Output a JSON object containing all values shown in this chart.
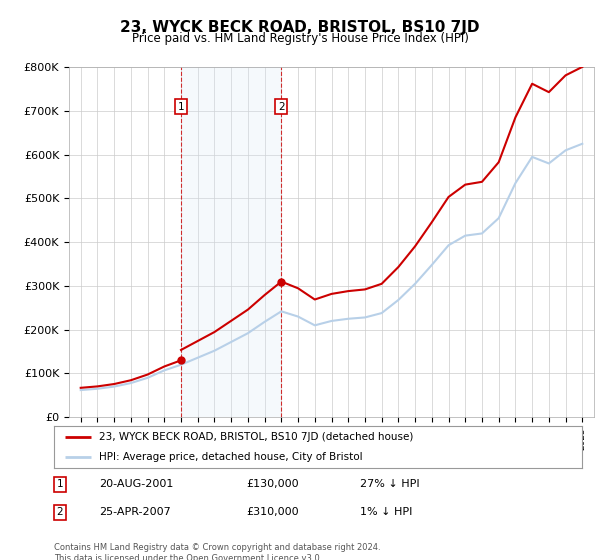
{
  "title": "23, WYCK BECK ROAD, BRISTOL, BS10 7JD",
  "subtitle": "Price paid vs. HM Land Registry's House Price Index (HPI)",
  "years": [
    1995,
    1996,
    1997,
    1998,
    1999,
    2000,
    2001,
    2002,
    2003,
    2004,
    2005,
    2006,
    2007,
    2008,
    2009,
    2010,
    2011,
    2012,
    2013,
    2014,
    2015,
    2016,
    2017,
    2018,
    2019,
    2020,
    2021,
    2022,
    2023,
    2024,
    2025
  ],
  "hpi_values": [
    62000,
    65000,
    70000,
    78000,
    90000,
    107000,
    120000,
    136000,
    152000,
    172000,
    192000,
    218000,
    242000,
    230000,
    210000,
    220000,
    225000,
    228000,
    238000,
    268000,
    305000,
    348000,
    393000,
    415000,
    420000,
    455000,
    535000,
    595000,
    580000,
    610000,
    625000
  ],
  "sale1_year": 2001,
  "sale1_value": 130000,
  "sale2_year": 2007,
  "sale2_value": 310000,
  "annotation1_date": "20-AUG-2001",
  "annotation1_price": "£130,000",
  "annotation1_hpi": "27% ↓ HPI",
  "annotation2_date": "25-APR-2007",
  "annotation2_price": "£310,000",
  "annotation2_hpi": "1% ↓ HPI",
  "legend_label1": "23, WYCK BECK ROAD, BRISTOL, BS10 7JD (detached house)",
  "legend_label2": "HPI: Average price, detached house, City of Bristol",
  "footer": "Contains HM Land Registry data © Crown copyright and database right 2024.\nThis data is licensed under the Open Government Licence v3.0.",
  "hpi_color": "#b8d0e8",
  "price_paid_color": "#cc0000",
  "shaded_color": "#daeaf7",
  "ylim": [
    0,
    800000
  ],
  "yticks": [
    0,
    100000,
    200000,
    300000,
    400000,
    500000,
    600000,
    700000,
    800000
  ],
  "ytick_labels": [
    "£0",
    "£100K",
    "£200K",
    "£300K",
    "£400K",
    "£500K",
    "£600K",
    "£700K",
    "£800K"
  ]
}
